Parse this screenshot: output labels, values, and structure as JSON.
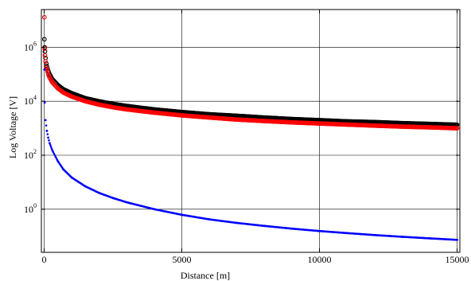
{
  "chart_data": {
    "type": "scatter",
    "title": "",
    "xlabel": "Distance [m]",
    "ylabel": "Log Voltage [V]",
    "xlim": [
      -100,
      15100
    ],
    "ylim_log10": [
      -1.6,
      7.4
    ],
    "yscale": "log",
    "grid": true,
    "x_ticks": [
      0,
      5000,
      10000,
      15000
    ],
    "x_tick_labels": [
      "0",
      "5000",
      "10000",
      "15000"
    ],
    "y_ticks_log10": [
      0,
      2,
      4,
      6
    ],
    "y_tick_labels": [
      {
        "base": "10",
        "exp": "0"
      },
      {
        "base": "10",
        "exp": "2"
      },
      {
        "base": "10",
        "exp": "4"
      },
      {
        "base": "10",
        "exp": "6"
      }
    ],
    "series": [
      {
        "color": "#000000",
        "marker": "circle-open",
        "x": [
          10,
          20,
          30,
          50,
          80,
          100,
          150,
          200,
          300,
          500,
          700,
          1000,
          1500,
          2000,
          2500,
          3000,
          4000,
          5000,
          6000,
          7000,
          8000,
          9000,
          10000,
          11000,
          12000,
          13000,
          14000,
          15000
        ],
        "y": [
          2000000,
          1000000,
          700000,
          400000,
          250000,
          200000,
          135000,
          100000,
          66000,
          40000,
          28000,
          20000,
          13000,
          10000,
          8000,
          6700,
          5000,
          4000,
          3300,
          2900,
          2500,
          2200,
          2000,
          1800,
          1700,
          1550,
          1450,
          1350
        ]
      },
      {
        "color": "#ff0000",
        "marker": "circle-open",
        "x": [
          10,
          20,
          30,
          50,
          80,
          100,
          150,
          200,
          300,
          500,
          700,
          1000,
          1500,
          2000,
          2500,
          3000,
          4000,
          5000,
          6000,
          7000,
          8000,
          9000,
          10000,
          11000,
          12000,
          13000,
          14000,
          15000
        ],
        "y": [
          13000000,
          900000,
          500000,
          300000,
          180000,
          150000,
          100000,
          75000,
          50000,
          30000,
          21000,
          15000,
          10000,
          7500,
          6000,
          5000,
          3800,
          3000,
          2500,
          2100,
          1850,
          1650,
          1500,
          1370,
          1250,
          1150,
          1080,
          1000
        ]
      },
      {
        "color": "#0000ff",
        "marker": "dot",
        "x": [
          10,
          20,
          50,
          100,
          150,
          200,
          300,
          500,
          700,
          1000,
          1500,
          2000,
          2500,
          3000,
          4000,
          5000,
          6000,
          7000,
          8000,
          9000,
          10000,
          11000,
          12000,
          13000,
          14000,
          15000
        ],
        "y": [
          150000,
          9000,
          2000,
          800,
          450,
          280,
          150,
          60,
          30,
          15,
          7,
          4,
          2.6,
          1.8,
          1.0,
          0.62,
          0.42,
          0.31,
          0.24,
          0.19,
          0.155,
          0.13,
          0.11,
          0.095,
          0.083,
          0.073
        ]
      }
    ]
  }
}
